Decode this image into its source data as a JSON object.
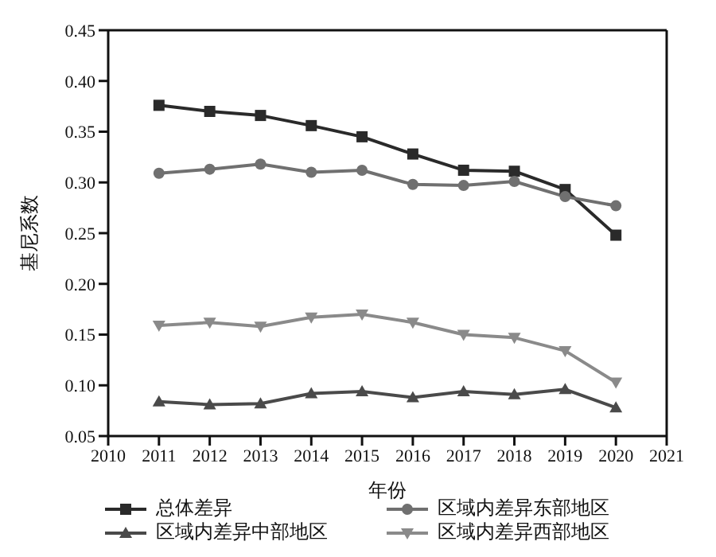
{
  "chart_data": {
    "type": "line",
    "xlabel": "年份",
    "ylabel": "基尼系数",
    "x": [
      2011,
      2012,
      2013,
      2014,
      2015,
      2016,
      2017,
      2018,
      2019,
      2020
    ],
    "xlim": [
      2010,
      2021
    ],
    "xticks": [
      2010,
      2011,
      2012,
      2013,
      2014,
      2015,
      2016,
      2017,
      2018,
      2019,
      2020,
      2021
    ],
    "ylim": [
      0.05,
      0.45
    ],
    "yticks": [
      0.05,
      {
        "value": 0.1,
        "label": "0.10"
      },
      0.15,
      {
        "value": 0.2,
        "label": "0.20"
      },
      0.25,
      {
        "value": 0.3,
        "label": "0.30"
      },
      0.35,
      {
        "value": 0.4,
        "label": "0.40"
      },
      0.45
    ],
    "grid": false,
    "legend": "bottom",
    "line_style": "solid",
    "series": [
      {
        "name": "总体差异",
        "color": "#2a2a2a",
        "marker": "square",
        "values": [
          0.376,
          0.37,
          0.366,
          0.356,
          0.345,
          0.328,
          0.312,
          0.311,
          0.293,
          0.248
        ]
      },
      {
        "name": "区域内差异东部地区",
        "color": "#707070",
        "marker": "circle",
        "values": [
          0.309,
          0.313,
          0.318,
          0.31,
          0.312,
          0.298,
          0.297,
          0.301,
          0.286,
          0.277
        ]
      },
      {
        "name": "区域内差异中部地区",
        "color": "#4a4a4a",
        "marker": "triangle",
        "values": [
          0.084,
          0.081,
          0.082,
          0.092,
          0.094,
          0.088,
          0.094,
          0.091,
          0.096,
          0.078
        ]
      },
      {
        "name": "区域内差异西部地区",
        "color": "#8a8a8a",
        "marker": "triangle-down",
        "values": [
          0.159,
          0.162,
          0.158,
          0.167,
          0.17,
          0.162,
          0.15,
          0.147,
          0.134,
          0.103
        ]
      }
    ]
  }
}
